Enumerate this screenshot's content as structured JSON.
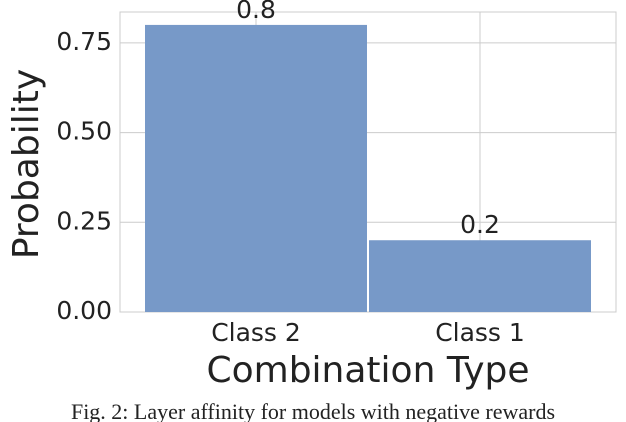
{
  "chart_data": {
    "type": "bar",
    "xlabel": "Combination Type",
    "ylabel": "Probability",
    "categories": [
      "Class 2",
      "Class 1"
    ],
    "values": [
      0.8,
      0.2
    ],
    "color": "#7799c8",
    "ylim": [
      0,
      0.836
    ],
    "yticks": [
      {
        "value": 0,
        "label": "0.00"
      },
      {
        "value": 0.25,
        "label": "0.25"
      },
      {
        "value": 0.5,
        "label": "0.50"
      },
      {
        "value": 0.75,
        "label": "0.75"
      }
    ],
    "grid": true,
    "caption": "Fig. 2: Layer affinity for models with negative rewards"
  }
}
